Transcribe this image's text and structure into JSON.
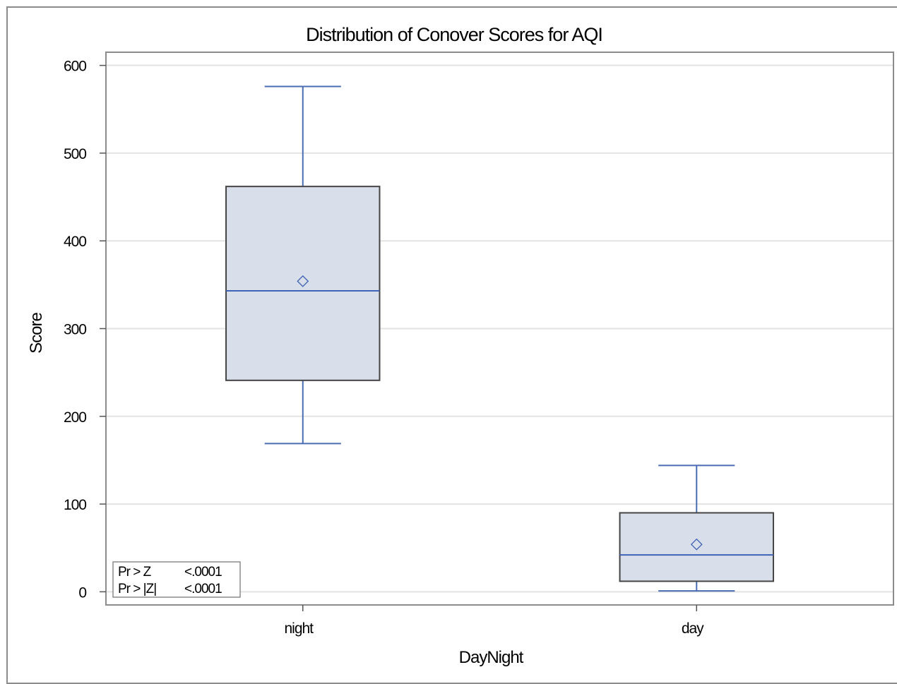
{
  "chart_data": {
    "type": "box",
    "title": "Distribution of Conover Scores for AQI",
    "xlabel": "DayNight",
    "ylabel": "Score",
    "ylim": [
      -15,
      615
    ],
    "yticks": [
      0,
      100,
      200,
      300,
      400,
      500,
      600
    ],
    "ytick_labels": [
      "0",
      "100",
      "200",
      "300",
      "400",
      "500",
      "600"
    ],
    "grid": true,
    "categories": [
      "night",
      "day"
    ],
    "boxes": [
      {
        "category": "night",
        "min": 169,
        "q1": 241,
        "median": 343,
        "mean": 354,
        "q3": 462,
        "max": 576
      },
      {
        "category": "day",
        "min": 1,
        "q1": 12,
        "median": 42,
        "mean": 54,
        "q3": 90,
        "max": 144
      }
    ],
    "stats_table": [
      {
        "label": "Pr > Z",
        "value": "<.0001"
      },
      {
        "label": "Pr > |Z|",
        "value": "<.0001"
      }
    ],
    "colors": {
      "box_fill": "#d9dfea",
      "box_border": "#444444",
      "whisker": "#4a6cb3",
      "median": "#3f62b4",
      "mean_marker": "#3f62b4",
      "grid": "#e3e3e3",
      "plot_border": "#8c8c8c"
    }
  }
}
